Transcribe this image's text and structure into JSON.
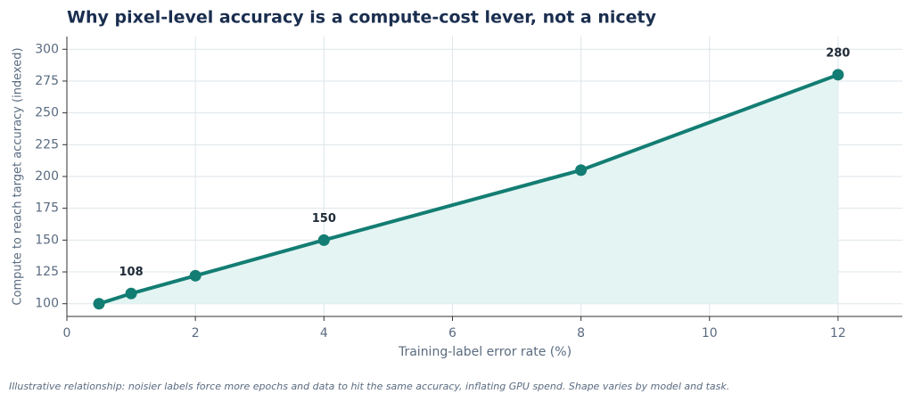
{
  "chart_data": {
    "type": "line",
    "title": "Why pixel-level accuracy is a compute-cost lever, not a nicety",
    "x_label": "Training-label error rate (%)",
    "y_label": "Compute to reach target accuracy (indexed)",
    "note": "Illustrative relationship: noisier labels force more epochs and data to hit the same accuracy, inflating GPU spend. Shape varies by model and task.",
    "x": [
      0.5,
      1,
      2,
      4,
      8,
      12
    ],
    "values": [
      100,
      108,
      122,
      150,
      205,
      280
    ],
    "value_labels": [
      null,
      "108",
      null,
      "150",
      null,
      "280"
    ],
    "color": "#137d73",
    "fill": "#e3f4f2",
    "xlim": [
      0,
      13
    ],
    "xticks": [
      0,
      2,
      4,
      6,
      8,
      10,
      12
    ],
    "ylim": [
      90,
      310
    ],
    "yticks": [
      100,
      125,
      150,
      175,
      200,
      225,
      250,
      275,
      300
    ],
    "grid": true
  }
}
